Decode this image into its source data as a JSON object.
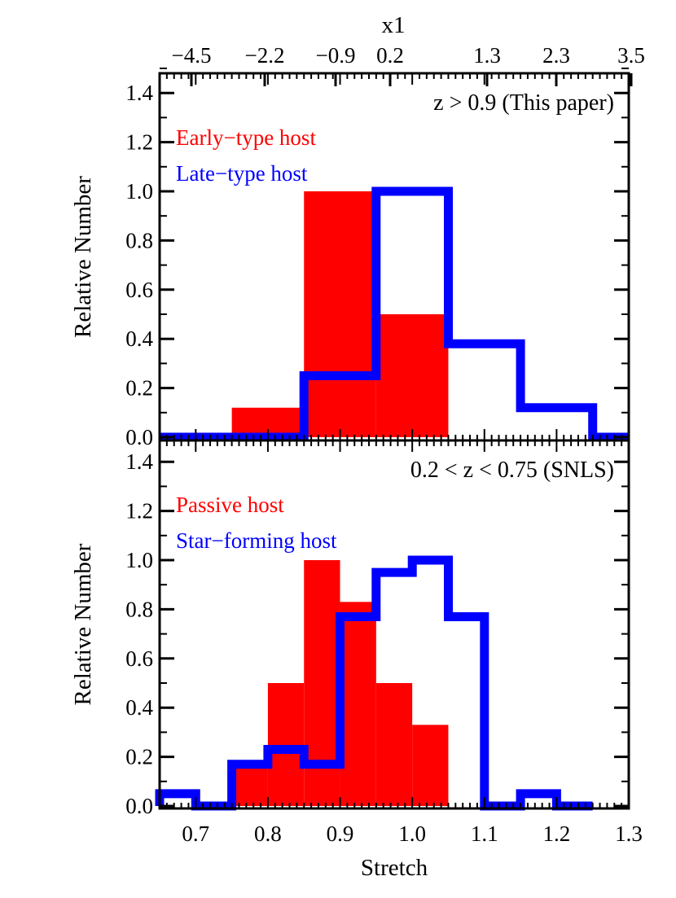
{
  "figure": {
    "top_axis_label": "x1",
    "top_axis_ticks": [
      "−4.5",
      "−2.2",
      "−0.9",
      "0.2",
      "1.3",
      "2.3",
      "3.5"
    ],
    "colors": {
      "red": "#ff0000",
      "blue": "#0000ff",
      "axis": "#000000"
    }
  },
  "chart_data": [
    {
      "type": "bar",
      "annotation": "z > 0.9 (This paper)",
      "xlabel": "",
      "ylabel": "Relative Number",
      "xlim": [
        0.65,
        1.3
      ],
      "ylim": [
        -0.03,
        1.5
      ],
      "y_ticks": [
        "0.0",
        "0.2",
        "0.4",
        "0.6",
        "0.8",
        "1.0",
        "1.2",
        "1.4"
      ],
      "bin_width": 0.1,
      "legend": "top-left",
      "series": [
        {
          "name": "Early−type host",
          "style": "filled",
          "color": "#ff0000",
          "bin_starts": [
            0.75,
            0.85,
            0.95
          ],
          "values": [
            0.12,
            1.0,
            0.5
          ]
        },
        {
          "name": "Late−type host",
          "style": "step-outline",
          "color": "#0000ff",
          "bin_starts": [
            0.55,
            0.65,
            0.75,
            0.85,
            0.95,
            1.05,
            1.15,
            1.25
          ],
          "values": [
            0.0,
            0.0,
            0.0,
            0.25,
            1.0,
            0.38,
            0.12,
            0.0
          ]
        }
      ]
    },
    {
      "type": "bar",
      "annotation": "0.2 < z < 0.75 (SNLS)",
      "xlabel": "Stretch",
      "ylabel": "Relative Number",
      "xlim": [
        0.65,
        1.3
      ],
      "ylim": [
        -0.03,
        1.5
      ],
      "x_ticks": [
        "0.7",
        "0.8",
        "0.9",
        "1.0",
        "1.1",
        "1.2",
        "1.3"
      ],
      "y_ticks": [
        "0.0",
        "0.2",
        "0.4",
        "0.6",
        "0.8",
        "1.0",
        "1.2",
        "1.4"
      ],
      "bin_width": 0.05,
      "legend": "top-left",
      "series": [
        {
          "name": "Passive host",
          "style": "filled",
          "color": "#ff0000",
          "bin_starts": [
            0.75,
            0.8,
            0.85,
            0.9,
            0.95,
            1.0
          ],
          "values": [
            0.17,
            0.5,
            1.0,
            0.83,
            0.5,
            0.33
          ]
        },
        {
          "name": "Star−forming host",
          "style": "step-outline",
          "color": "#0000ff",
          "bin_starts": [
            0.6,
            0.65,
            0.7,
            0.75,
            0.8,
            0.85,
            0.9,
            0.95,
            1.0,
            1.05,
            1.1,
            1.15,
            1.2
          ],
          "values": [
            0.0,
            0.05,
            0.0,
            0.17,
            0.23,
            0.17,
            0.77,
            0.95,
            1.0,
            0.77,
            0.0,
            0.05,
            0.0
          ]
        }
      ]
    }
  ]
}
